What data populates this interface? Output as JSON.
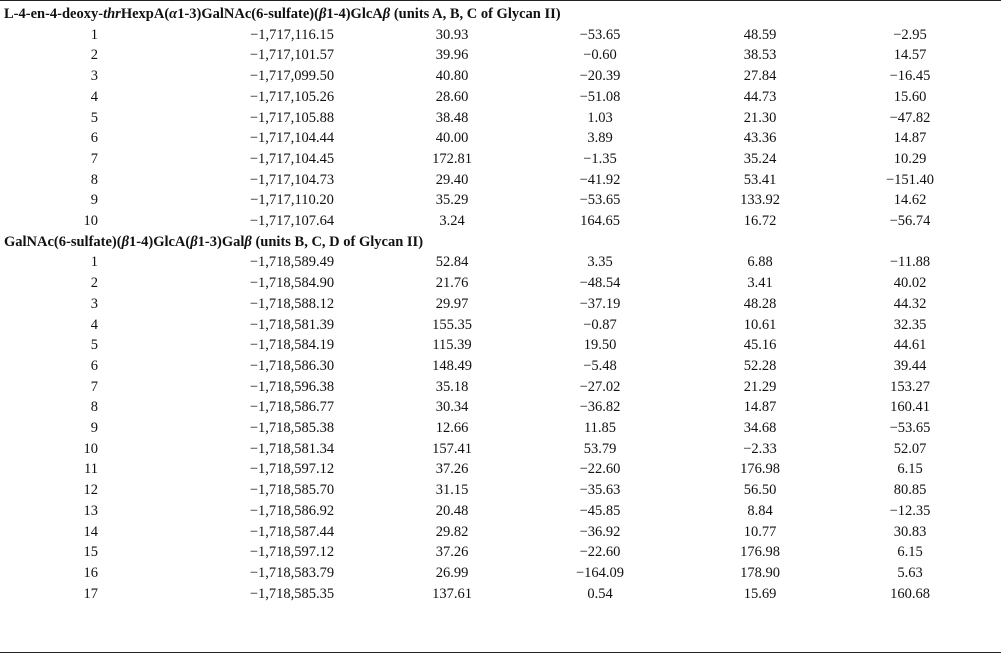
{
  "sections": [
    {
      "title_parts": [
        {
          "text": "L-4-en-4-deoxy-",
          "italic": false
        },
        {
          "text": "thr",
          "italic": true
        },
        {
          "text": "HexpA(",
          "italic": false
        },
        {
          "text": "α",
          "italic": true
        },
        {
          "text": "1-3)GalNAc(6-sulfate)(",
          "italic": false
        },
        {
          "text": "β",
          "italic": true
        },
        {
          "text": "1-4)GlcA",
          "italic": false
        },
        {
          "text": "β",
          "italic": true
        },
        {
          "text": " (units A, B, C of Glycan II)",
          "italic": false
        }
      ],
      "rows": [
        [
          "1",
          "−1,717,116.15",
          "30.93",
          "−53.65",
          "48.59",
          "−2.95"
        ],
        [
          "2",
          "−1,717,101.57",
          "39.96",
          "−0.60",
          "38.53",
          "14.57"
        ],
        [
          "3",
          "−1,717,099.50",
          "40.80",
          "−20.39",
          "27.84",
          "−16.45"
        ],
        [
          "4",
          "−1,717,105.26",
          "28.60",
          "−51.08",
          "44.73",
          "15.60"
        ],
        [
          "5",
          "−1,717,105.88",
          "38.48",
          "1.03",
          "21.30",
          "−47.82"
        ],
        [
          "6",
          "−1,717,104.44",
          "40.00",
          "3.89",
          "43.36",
          "14.87"
        ],
        [
          "7",
          "−1,717,104.45",
          "172.81",
          "−1.35",
          "35.24",
          "10.29"
        ],
        [
          "8",
          "−1,717,104.73",
          "29.40",
          "−41.92",
          "53.41",
          "−151.40"
        ],
        [
          "9",
          "−1,717,110.20",
          "35.29",
          "−53.65",
          "133.92",
          "14.62"
        ],
        [
          "10",
          "−1,717,107.64",
          "3.24",
          "164.65",
          "16.72",
          "−56.74"
        ]
      ]
    },
    {
      "title_parts": [
        {
          "text": "GalNAc(6-sulfate)(",
          "italic": false
        },
        {
          "text": "β",
          "italic": true
        },
        {
          "text": "1-4)GlcA(",
          "italic": false
        },
        {
          "text": "β",
          "italic": true
        },
        {
          "text": "1-3)Gal",
          "italic": false
        },
        {
          "text": "β",
          "italic": true
        },
        {
          "text": " (units B, C, D of Glycan II)",
          "italic": false
        }
      ],
      "rows": [
        [
          "1",
          "−1,718,589.49",
          "52.84",
          "3.35",
          "6.88",
          "−11.88"
        ],
        [
          "2",
          "−1,718,584.90",
          "21.76",
          "−48.54",
          "3.41",
          "40.02"
        ],
        [
          "3",
          "−1,718,588.12",
          "29.97",
          "−37.19",
          "48.28",
          "44.32"
        ],
        [
          "4",
          "−1,718,581.39",
          "155.35",
          "−0.87",
          "10.61",
          "32.35"
        ],
        [
          "5",
          "−1,718,584.19",
          "115.39",
          "19.50",
          "45.16",
          "44.61"
        ],
        [
          "6",
          "−1,718,586.30",
          "148.49",
          "−5.48",
          "52.28",
          "39.44"
        ],
        [
          "7",
          "−1,718,596.38",
          "35.18",
          "−27.02",
          "21.29",
          "153.27"
        ],
        [
          "8",
          "−1,718,586.77",
          "30.34",
          "−36.82",
          "14.87",
          "160.41"
        ],
        [
          "9",
          "−1,718,585.38",
          "12.66",
          "11.85",
          "34.68",
          "−53.65"
        ],
        [
          "10",
          "−1,718,581.34",
          "157.41",
          "53.79",
          "−2.33",
          "52.07"
        ],
        [
          "11",
          "−1,718,597.12",
          "37.26",
          "−22.60",
          "176.98",
          "6.15"
        ],
        [
          "12",
          "−1,718,585.70",
          "31.15",
          "−35.63",
          "56.50",
          "80.85"
        ],
        [
          "13",
          "−1,718,586.92",
          "20.48",
          "−45.85",
          "8.84",
          "−12.35"
        ],
        [
          "14",
          "−1,718,587.44",
          "29.82",
          "−36.92",
          "10.77",
          "30.83"
        ],
        [
          "15",
          "−1,718,597.12",
          "37.26",
          "−22.60",
          "176.98",
          "6.15"
        ],
        [
          "16",
          "−1,718,583.79",
          "26.99",
          "−164.09",
          "178.90",
          "5.63"
        ],
        [
          "17",
          "−1,718,585.35",
          "137.61",
          "0.54",
          "15.69",
          "160.68"
        ]
      ]
    }
  ]
}
